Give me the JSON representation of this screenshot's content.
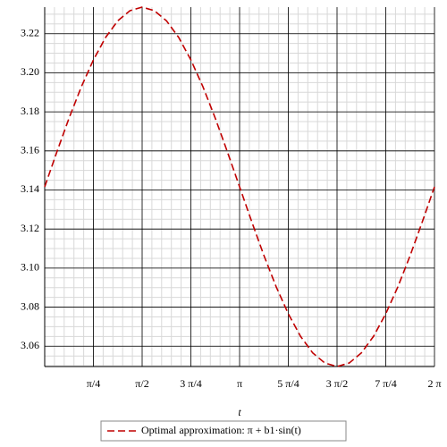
{
  "chart_data": {
    "type": "line",
    "xlabel": "t",
    "x": [
      0,
      0.1963,
      0.3927,
      0.589,
      0.7854,
      0.9817,
      1.1781,
      1.3744,
      1.5708,
      1.7671,
      1.9635,
      2.1598,
      2.3562,
      2.5525,
      2.7489,
      2.9452,
      3.1416,
      3.3379,
      3.5343,
      3.7306,
      3.927,
      4.1233,
      4.3197,
      4.516,
      4.7124,
      4.9087,
      5.1051,
      5.3014,
      5.4978,
      5.6941,
      5.8905,
      6.0868,
      6.2832
    ],
    "series": [
      {
        "name": "Optimal approximation: π + b1·sin(t)",
        "color": "#c00000",
        "values": [
          3.1416,
          3.1595,
          3.1768,
          3.1927,
          3.2066,
          3.2181,
          3.2266,
          3.2318,
          3.2336,
          3.2318,
          3.2266,
          3.2181,
          3.2066,
          3.1927,
          3.1768,
          3.1595,
          3.1416,
          3.1237,
          3.1064,
          3.0905,
          3.0766,
          3.0651,
          3.0566,
          3.0514,
          3.0496,
          3.0514,
          3.0566,
          3.0651,
          3.0766,
          3.0905,
          3.1064,
          3.1237,
          3.1416
        ]
      }
    ],
    "xlim": [
      0,
      6.2832
    ],
    "ylim": [
      3.0496,
      3.2336
    ],
    "xticks": [
      {
        "value": 0.7854,
        "label": "π/4"
      },
      {
        "value": 1.5708,
        "label": "π/2"
      },
      {
        "value": 2.3562,
        "label": "3 π/4"
      },
      {
        "value": 3.1416,
        "label": "π"
      },
      {
        "value": 3.927,
        "label": "5 π/4"
      },
      {
        "value": 4.7124,
        "label": "3 π/2"
      },
      {
        "value": 5.4978,
        "label": "7 π/4"
      },
      {
        "value": 6.2832,
        "label": "2 π"
      }
    ],
    "yticks": [
      3.06,
      3.08,
      {
        "value": 3.1,
        "label": "3.10"
      },
      3.12,
      3.14,
      3.16,
      3.18,
      {
        "value": 3.2,
        "label": "3.20"
      },
      3.22
    ],
    "grid": true
  }
}
